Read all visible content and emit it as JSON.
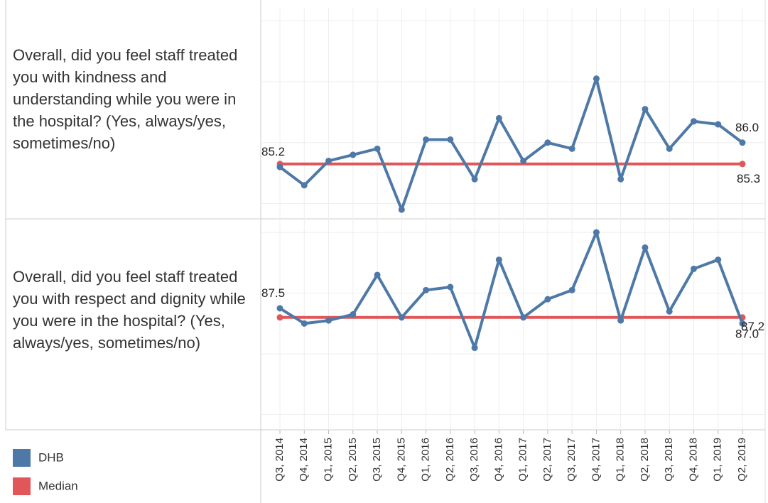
{
  "chart_data": [
    {
      "type": "line",
      "title": "Overall, did you feel staff treated you with kindness and understanding while you were in the hospital? (Yes, always/yes, sometimes/no)",
      "series": [
        {
          "name": "DHB",
          "color": "#4e79a7",
          "values": [
            85.2,
            84.6,
            85.4,
            85.6,
            85.8,
            83.8,
            86.1,
            86.1,
            84.8,
            86.8,
            85.4,
            86.0,
            85.8,
            88.1,
            84.8,
            87.1,
            85.8,
            86.7,
            86.6,
            86.0
          ],
          "value_labels": [
            "85.2",
            null,
            null,
            null,
            null,
            null,
            null,
            null,
            null,
            null,
            null,
            null,
            null,
            null,
            null,
            null,
            null,
            null,
            null,
            "86.0"
          ]
        }
      ],
      "median": {
        "name": "Median",
        "color": "#e15759",
        "value": 85.3,
        "label": "85.3"
      },
      "ylim": [
        83.5,
        90.4
      ],
      "yticks": [
        84,
        86,
        88,
        90
      ],
      "grid": true
    },
    {
      "type": "line",
      "title": "Overall, did you feel staff treated you with respect and dignity while you were in the hospital? (Yes, always/yes, sometimes/no)",
      "categories": [
        "Q3, 2014",
        "Q4, 2014",
        "Q1, 2015",
        "Q2, 2015",
        "Q3, 2015",
        "Q4, 2015",
        "Q1, 2016",
        "Q2, 2016",
        "Q3, 2016",
        "Q4, 2016",
        "Q1, 2017",
        "Q2, 2017",
        "Q3, 2017",
        "Q4, 2017",
        "Q1, 2018",
        "Q2, 2018",
        "Q3, 2018",
        "Q4, 2018",
        "Q1, 2019",
        "Q2, 2019"
      ],
      "series": [
        {
          "color": "#4e79a7",
          "values": [
            87.5,
            87.0,
            87.1,
            87.3,
            88.6,
            87.2,
            88.1,
            88.2,
            86.2,
            89.1,
            87.2,
            87.8,
            88.1,
            90.0,
            87.1,
            89.5,
            87.4,
            88.8,
            89.1,
            87.0
          ],
          "value_labels": [
            "87.5",
            null,
            null,
            null,
            null,
            null,
            null,
            null,
            null,
            null,
            null,
            null,
            null,
            null,
            null,
            null,
            null,
            null,
            null,
            "87.0"
          ]
        }
      ],
      "median": {
        "color": "#e15759",
        "value": 87.2,
        "label": "87.2"
      },
      "ylim": [
        83.5,
        90.4
      ],
      "yticks": [
        84,
        86,
        88,
        90
      ],
      "grid": true
    }
  ]
}
